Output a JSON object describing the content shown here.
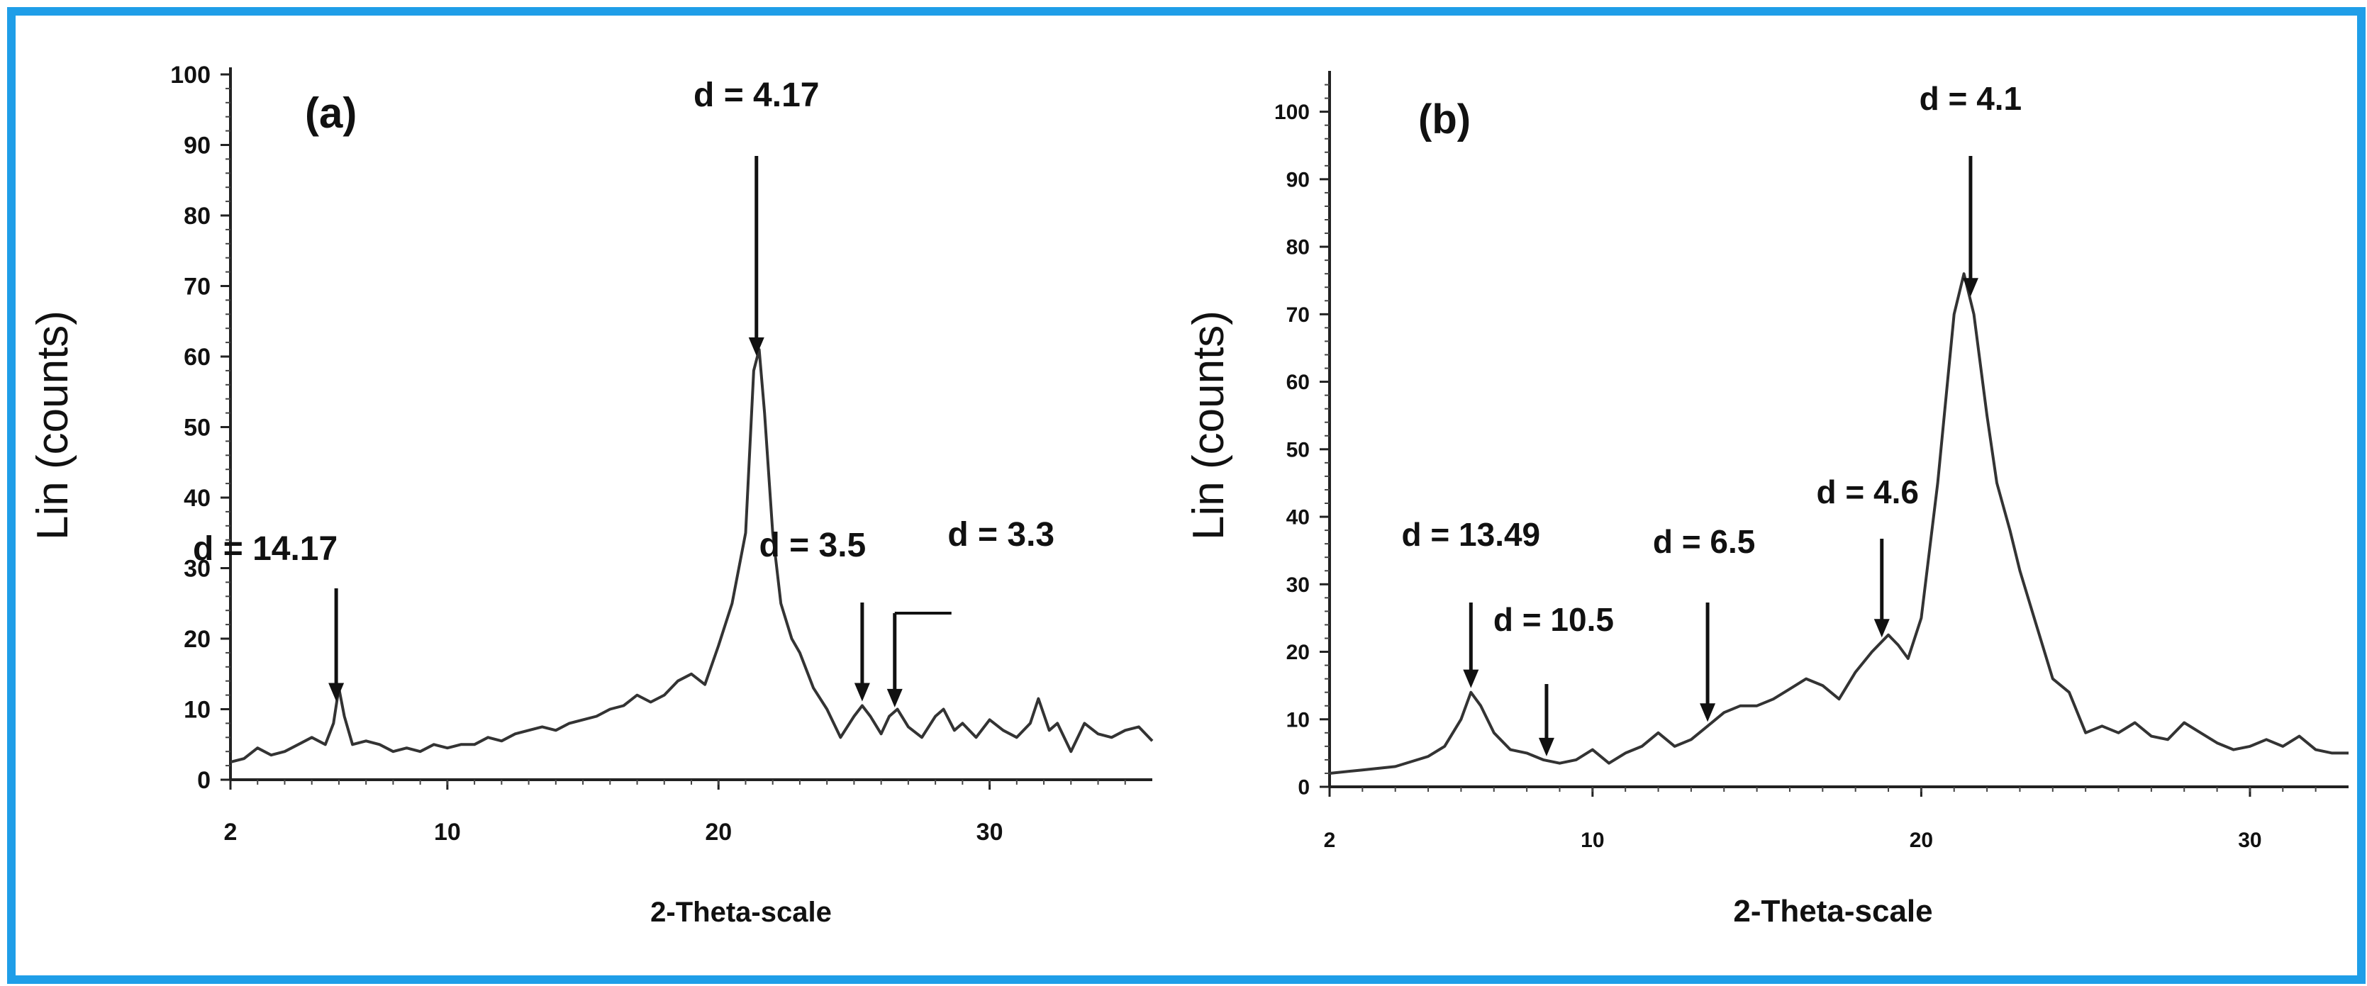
{
  "chart_data": [
    {
      "panel": "(a)",
      "type": "line",
      "xlabel": "2-Theta-scale",
      "ylabel": "Lin (counts)",
      "xlim": [
        2,
        36
      ],
      "ylim": [
        0,
        100
      ],
      "xticks": [
        2,
        10,
        20,
        30
      ],
      "yticks": [
        0,
        10,
        20,
        30,
        40,
        50,
        60,
        70,
        80,
        90,
        100
      ],
      "x": [
        2.0,
        2.5,
        3.0,
        3.5,
        4.0,
        4.5,
        5.0,
        5.5,
        5.8,
        6.0,
        6.2,
        6.5,
        7.0,
        7.5,
        8.0,
        8.5,
        9.0,
        9.5,
        10.0,
        10.5,
        11.0,
        11.5,
        12.0,
        12.5,
        13.0,
        13.5,
        14.0,
        14.5,
        15.0,
        15.5,
        16.0,
        16.5,
        17.0,
        17.5,
        18.0,
        18.5,
        19.0,
        19.5,
        20.0,
        20.5,
        21.0,
        21.3,
        21.5,
        21.7,
        22.0,
        22.3,
        22.7,
        23.0,
        23.5,
        24.0,
        24.5,
        25.0,
        25.3,
        25.6,
        26.0,
        26.3,
        26.6,
        27.0,
        27.5,
        28.0,
        28.3,
        28.7,
        29.0,
        29.5,
        30.0,
        30.5,
        31.0,
        31.5,
        31.8,
        32.2,
        32.5,
        33.0,
        33.5,
        34.0,
        34.5,
        35.0,
        35.5,
        36.0
      ],
      "y": [
        2.5,
        3.0,
        4.5,
        3.5,
        4.0,
        5.0,
        6.0,
        5.0,
        8.0,
        13.0,
        9.0,
        5.0,
        5.5,
        5.0,
        4.0,
        4.5,
        4.0,
        5.0,
        4.5,
        5.0,
        5.0,
        6.0,
        5.5,
        6.5,
        7.0,
        7.5,
        7.0,
        8.0,
        8.5,
        9.0,
        10.0,
        10.5,
        12.0,
        11.0,
        12.0,
        14.0,
        15.0,
        13.5,
        19.0,
        25.0,
        35.0,
        58.0,
        61.0,
        52.0,
        35.0,
        25.0,
        20.0,
        18.0,
        13.0,
        10.0,
        6.0,
        9.0,
        10.5,
        9.0,
        6.5,
        9.0,
        10.0,
        7.5,
        6.0,
        9.0,
        10.0,
        7.0,
        8.0,
        6.0,
        8.5,
        7.0,
        6.0,
        8.0,
        11.5,
        7.0,
        8.0,
        4.0,
        8.0,
        6.5,
        6.0,
        7.0,
        7.5,
        5.5
      ],
      "peaks": [
        {
          "label": "d = 14.17",
          "x": 5.9
        },
        {
          "label": "d = 4.17",
          "x": 21.4
        },
        {
          "label": "d = 3.5",
          "x": 25.3
        },
        {
          "label": "d = 3.3",
          "x": 26.5
        }
      ]
    },
    {
      "panel": "(b)",
      "type": "line",
      "xlabel": "2-Theta-scale",
      "ylabel": "Lin (counts)",
      "xlim": [
        2,
        33
      ],
      "ylim": [
        0,
        105
      ],
      "xticks": [
        2,
        10,
        20,
        30
      ],
      "yticks": [
        0,
        10,
        20,
        30,
        40,
        50,
        60,
        70,
        80,
        90,
        100
      ],
      "x": [
        2.0,
        3.0,
        4.0,
        5.0,
        5.5,
        6.0,
        6.3,
        6.6,
        7.0,
        7.5,
        8.0,
        8.5,
        9.0,
        9.5,
        10.0,
        10.5,
        11.0,
        11.5,
        12.0,
        12.5,
        13.0,
        13.5,
        14.0,
        14.5,
        15.0,
        15.5,
        16.0,
        16.5,
        17.0,
        17.5,
        18.0,
        18.5,
        19.0,
        19.3,
        19.6,
        20.0,
        20.5,
        21.0,
        21.3,
        21.6,
        22.0,
        22.3,
        22.7,
        23.0,
        23.5,
        24.0,
        24.5,
        25.0,
        25.5,
        26.0,
        26.5,
        27.0,
        27.5,
        28.0,
        28.5,
        29.0,
        29.5,
        30.0,
        30.5,
        31.0,
        31.5,
        32.0,
        32.5,
        33.0
      ],
      "y": [
        2.0,
        2.5,
        3.0,
        4.5,
        6.0,
        10.0,
        14.0,
        12.0,
        8.0,
        5.5,
        5.0,
        4.0,
        3.5,
        4.0,
        5.5,
        3.5,
        5.0,
        6.0,
        8.0,
        6.0,
        7.0,
        9.0,
        11.0,
        12.0,
        12.0,
        13.0,
        14.5,
        16.0,
        15.0,
        13.0,
        17.0,
        20.0,
        22.5,
        21.0,
        19.0,
        25.0,
        45.0,
        70.0,
        76.0,
        70.0,
        55.0,
        45.0,
        38.0,
        32.0,
        24.0,
        16.0,
        14.0,
        8.0,
        9.0,
        8.0,
        9.5,
        7.5,
        7.0,
        9.5,
        8.0,
        6.5,
        5.5,
        6.0,
        7.0,
        6.0,
        7.5,
        5.5,
        5.0,
        5.0
      ],
      "peaks": [
        {
          "label": "d = 13.49",
          "x": 6.3
        },
        {
          "label": "d = 10.5",
          "x": 8.6
        },
        {
          "label": "d = 6.5",
          "x": 13.5
        },
        {
          "label": "d = 4.6",
          "x": 18.8
        },
        {
          "label": "d = 4.1",
          "x": 21.5
        }
      ]
    }
  ]
}
